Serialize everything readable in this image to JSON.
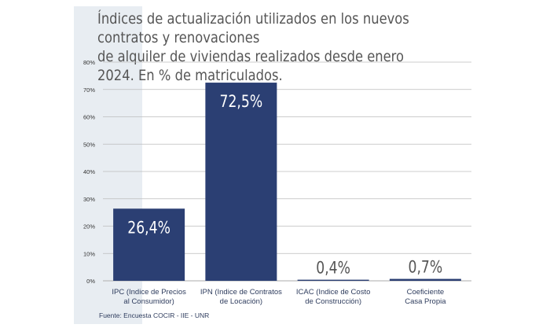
{
  "chart_data": {
    "type": "bar",
    "title": "Índices de actualización utilizados en los nuevos contratos y renovaciones\nde alquiler de viviendas realizados desde enero 2024. En % de matriculados.",
    "categories": [
      [
        "IPC (Indice de Precios",
        "al Consumidor)"
      ],
      [
        "IPN (Indice de Contratos",
        "de Locación)"
      ],
      [
        "ICAC (Indice de Costo",
        "de Construcción)"
      ],
      [
        "Coeficiente",
        "Casa Propia"
      ]
    ],
    "values": [
      26.4,
      72.5,
      0.4,
      0.7
    ],
    "value_labels": [
      "26,4%",
      "72,5%",
      "0,4%",
      "0,7%"
    ],
    "ylim": [
      0,
      80
    ],
    "yticks": [
      0,
      10,
      20,
      30,
      40,
      50,
      60,
      70,
      80
    ],
    "ytick_labels": [
      "0%",
      "10%",
      "20%",
      "30%",
      "40%",
      "50%",
      "60%",
      "70%",
      "80%"
    ],
    "grid": true,
    "bar_color": "#2b3f73",
    "source": "Fuente: Encuesta COCIR - IIE - UNR"
  }
}
